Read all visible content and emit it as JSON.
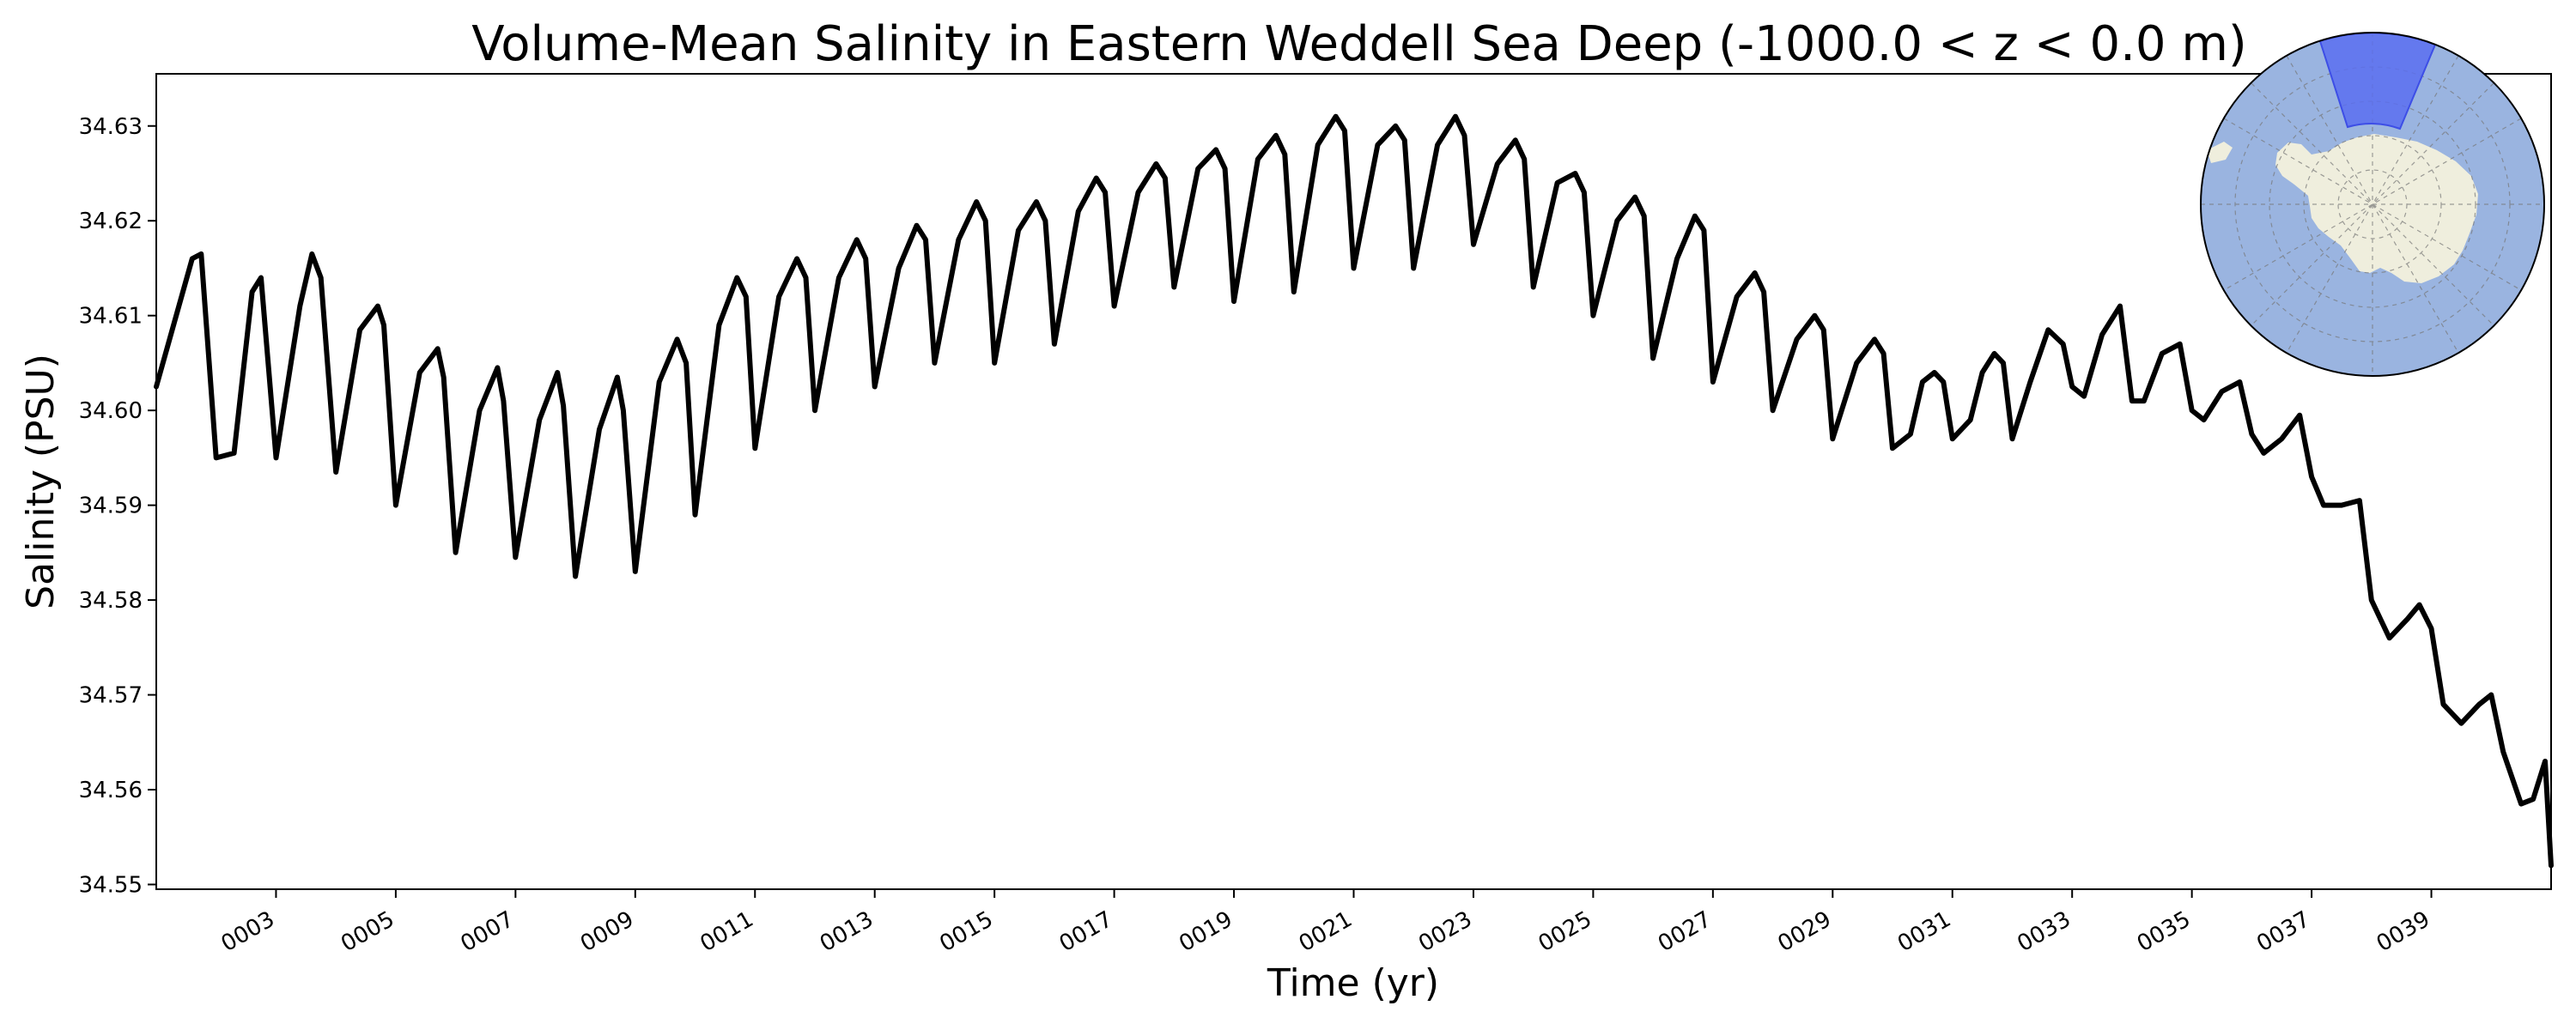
{
  "chart_data": {
    "type": "line",
    "title": "Volume-Mean Salinity in Eastern Weddell Sea Deep (-1000.0 < z < 0.0 m)",
    "xlabel": "Time (yr)",
    "ylabel": "Salinity (PSU)",
    "xlim": [
      1.0,
      41.0
    ],
    "ylim": [
      34.5495,
      34.6355
    ],
    "grid": false,
    "yticks": [
      34.55,
      34.56,
      34.57,
      34.58,
      34.59,
      34.6,
      34.61,
      34.62,
      34.63
    ],
    "ytick_labels": [
      "34.55",
      "34.56",
      "34.57",
      "34.58",
      "34.59",
      "34.60",
      "34.61",
      "34.62",
      "34.63"
    ],
    "xticks": [
      3,
      5,
      7,
      9,
      11,
      13,
      15,
      17,
      19,
      21,
      23,
      25,
      27,
      29,
      31,
      33,
      35,
      37,
      39
    ],
    "xtick_labels": [
      "0003",
      "0005",
      "0007",
      "0009",
      "0011",
      "0013",
      "0015",
      "0017",
      "0019",
      "0021",
      "0023",
      "0025",
      "0027",
      "0029",
      "0031",
      "0033",
      "0035",
      "0037",
      "0039"
    ],
    "series_color": "#000000",
    "series": [
      {
        "x": [
          1.0,
          1.6,
          1.75,
          2.0,
          2.3,
          2.6,
          2.75,
          3.0,
          3.4,
          3.6,
          3.75,
          4.0,
          4.4,
          4.7,
          4.8,
          5.0,
          5.4,
          5.7,
          5.8,
          6.0,
          6.4,
          6.7,
          6.8,
          7.0,
          7.4,
          7.7,
          7.8,
          8.0,
          8.4,
          8.7,
          8.8,
          9.0,
          9.4,
          9.7,
          9.85,
          10.0,
          10.4,
          10.7,
          10.85,
          11.0,
          11.4,
          11.7,
          11.85,
          12.0,
          12.4,
          12.7,
          12.85,
          13.0,
          13.4,
          13.7,
          13.85,
          14.0,
          14.4,
          14.7,
          14.85,
          15.0,
          15.4,
          15.7,
          15.85,
          16.0,
          16.4,
          16.7,
          16.85,
          17.0,
          17.4,
          17.7,
          17.85,
          18.0,
          18.4,
          18.7,
          18.85,
          19.0,
          19.4,
          19.7,
          19.85,
          20.0,
          20.4,
          20.7,
          20.85,
          21.0,
          21.4,
          21.7,
          21.85,
          22.0,
          22.4,
          22.7,
          22.85,
          23.0,
          23.4,
          23.7,
          23.85,
          24.0,
          24.4,
          24.7,
          24.85,
          25.0,
          25.4,
          25.7,
          25.85,
          26.0,
          26.4,
          26.7,
          26.85,
          27.0,
          27.4,
          27.7,
          27.85,
          28.0,
          28.4,
          28.7,
          28.85,
          29.0,
          29.4,
          29.7,
          29.85,
          30.0,
          30.3,
          30.5,
          30.7,
          30.85,
          31.0,
          31.3,
          31.5,
          31.7,
          31.85,
          32.0,
          32.3,
          32.6,
          32.85,
          33.0,
          33.2,
          33.5,
          33.8,
          34.0,
          34.2,
          34.5,
          34.8,
          35.0,
          35.2,
          35.5,
          35.8,
          36.0,
          36.2,
          36.5,
          36.8,
          37.0,
          37.2,
          37.5,
          37.8,
          38.0,
          38.3,
          38.6,
          38.8,
          39.0,
          39.2,
          39.5,
          39.8,
          40.0,
          40.2,
          40.5,
          40.7,
          40.9,
          41.0
        ],
        "y": [
          34.6025,
          34.616,
          34.6165,
          34.595,
          34.5955,
          34.6125,
          34.614,
          34.595,
          34.611,
          34.6165,
          34.614,
          34.5935,
          34.6085,
          34.611,
          34.609,
          34.59,
          34.604,
          34.6065,
          34.6035,
          34.585,
          34.6,
          34.6045,
          34.601,
          34.5845,
          34.599,
          34.604,
          34.6005,
          34.5825,
          34.598,
          34.6035,
          34.6,
          34.583,
          34.603,
          34.6075,
          34.605,
          34.589,
          34.609,
          34.614,
          34.612,
          34.596,
          34.612,
          34.616,
          34.614,
          34.6,
          34.614,
          34.618,
          34.616,
          34.6025,
          34.615,
          34.6195,
          34.618,
          34.605,
          34.618,
          34.622,
          34.62,
          34.605,
          34.619,
          34.622,
          34.62,
          34.607,
          34.621,
          34.6245,
          34.623,
          34.611,
          34.623,
          34.626,
          34.6245,
          34.613,
          34.6255,
          34.6275,
          34.6255,
          34.6115,
          34.6265,
          34.629,
          34.627,
          34.6125,
          34.628,
          34.631,
          34.6295,
          34.615,
          34.628,
          34.63,
          34.6285,
          34.615,
          34.628,
          34.631,
          34.629,
          34.6175,
          34.626,
          34.6285,
          34.6265,
          34.613,
          34.624,
          34.625,
          34.623,
          34.61,
          34.62,
          34.6225,
          34.6205,
          34.6055,
          34.616,
          34.6205,
          34.619,
          34.603,
          34.612,
          34.6145,
          34.6125,
          34.6,
          34.6075,
          34.61,
          34.6085,
          34.597,
          34.605,
          34.6075,
          34.606,
          34.596,
          34.5975,
          34.603,
          34.604,
          34.603,
          34.597,
          34.599,
          34.604,
          34.606,
          34.605,
          34.597,
          34.603,
          34.6085,
          34.607,
          34.6025,
          34.6015,
          34.608,
          34.611,
          34.601,
          34.601,
          34.606,
          34.607,
          34.6,
          34.599,
          34.602,
          34.603,
          34.5975,
          34.5955,
          34.597,
          34.5995,
          34.593,
          34.59,
          34.59,
          34.5905,
          34.58,
          34.576,
          34.578,
          34.5795,
          34.577,
          34.569,
          34.567,
          34.569,
          34.57,
          34.564,
          34.5585,
          34.559,
          34.563,
          34.552
        ]
      }
    ]
  },
  "inset_map": {
    "ocean_color": "#9ab4e0",
    "land_color": "#efeedd",
    "highlight_color": "#5b6ef0"
  }
}
